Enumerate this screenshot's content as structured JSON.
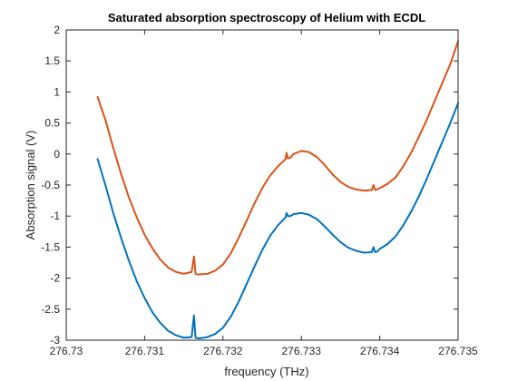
{
  "chart_data": {
    "type": "line",
    "title": "Saturated absorption spectroscopy of Helium with ECDL",
    "xlabel": "frequency (THz)",
    "ylabel": "Absorption signal (V)",
    "xlim": [
      276.73,
      276.735
    ],
    "ylim": [
      -3,
      2
    ],
    "xticks": [
      "276.73",
      "276.731",
      "276.732",
      "276.733",
      "276.734",
      "276.735"
    ],
    "yticks": [
      "-3",
      "-2.5",
      "-2",
      "-1.5",
      "-1",
      "-0.5",
      "0",
      "0.5",
      "1",
      "1.5",
      "2"
    ],
    "grid": false,
    "series": [
      {
        "color": "#D95319",
        "x": [
          276.7304,
          276.7305,
          276.7306,
          276.7307,
          276.7308,
          276.7309,
          276.731,
          276.7311,
          276.7312,
          276.7313,
          276.7314,
          276.7315,
          276.7316,
          276.73163,
          276.73165,
          276.73168,
          276.7317,
          276.7318,
          276.7319,
          276.732,
          276.7321,
          276.7322,
          276.7323,
          276.7324,
          276.7325,
          276.7326,
          276.7327,
          276.7328,
          276.73281,
          276.73283,
          276.73286,
          276.7329,
          276.733,
          276.7331,
          276.7332,
          276.7333,
          276.7334,
          276.7335,
          276.7336,
          276.7337,
          276.7338,
          276.7339,
          276.73392,
          276.73394,
          276.73397,
          276.734,
          276.7341,
          276.7342,
          276.7343,
          276.7344,
          276.7345,
          276.7346,
          276.7347,
          276.7348,
          276.7349,
          276.735
        ],
        "y": [
          0.92,
          0.55,
          0.1,
          -0.32,
          -0.7,
          -1.02,
          -1.3,
          -1.52,
          -1.7,
          -1.83,
          -1.9,
          -1.93,
          -1.9,
          -1.65,
          -1.93,
          -1.94,
          -1.94,
          -1.93,
          -1.88,
          -1.78,
          -1.6,
          -1.35,
          -1.08,
          -0.8,
          -0.55,
          -0.35,
          -0.2,
          -0.08,
          0.02,
          -0.07,
          -0.06,
          0.0,
          0.05,
          0.03,
          -0.05,
          -0.18,
          -0.33,
          -0.45,
          -0.53,
          -0.57,
          -0.59,
          -0.58,
          -0.5,
          -0.58,
          -0.57,
          -0.55,
          -0.48,
          -0.38,
          -0.2,
          0.02,
          0.28,
          0.55,
          0.85,
          1.15,
          1.45,
          1.82
        ]
      },
      {
        "color": "#0072BD",
        "x": [
          276.7304,
          276.7305,
          276.7306,
          276.7307,
          276.7308,
          276.7309,
          276.731,
          276.7311,
          276.7312,
          276.7313,
          276.7314,
          276.7315,
          276.7316,
          276.73163,
          276.73165,
          276.73168,
          276.7317,
          276.7318,
          276.7319,
          276.732,
          276.7321,
          276.7322,
          276.7323,
          276.7324,
          276.7325,
          276.7326,
          276.7327,
          276.7328,
          276.73281,
          276.73283,
          276.73286,
          276.7329,
          276.733,
          276.7331,
          276.7332,
          276.7333,
          276.7334,
          276.7335,
          276.7336,
          276.7337,
          276.7338,
          276.7339,
          276.73392,
          276.73394,
          276.73397,
          276.734,
          276.7341,
          276.7342,
          276.7343,
          276.7344,
          276.7345,
          276.7346,
          276.7347,
          276.7348,
          276.7349,
          276.735
        ],
        "y": [
          -0.08,
          -0.5,
          -0.95,
          -1.35,
          -1.72,
          -2.05,
          -2.32,
          -2.55,
          -2.72,
          -2.85,
          -2.92,
          -2.96,
          -2.95,
          -2.6,
          -2.96,
          -2.97,
          -2.97,
          -2.95,
          -2.9,
          -2.8,
          -2.62,
          -2.38,
          -2.1,
          -1.82,
          -1.55,
          -1.32,
          -1.15,
          -1.02,
          -0.95,
          -1.0,
          -1.0,
          -0.97,
          -0.95,
          -0.98,
          -1.05,
          -1.17,
          -1.3,
          -1.42,
          -1.51,
          -1.56,
          -1.59,
          -1.58,
          -1.5,
          -1.58,
          -1.57,
          -1.53,
          -1.45,
          -1.33,
          -1.15,
          -0.93,
          -0.68,
          -0.4,
          -0.1,
          0.2,
          0.5,
          0.82
        ]
      }
    ]
  }
}
